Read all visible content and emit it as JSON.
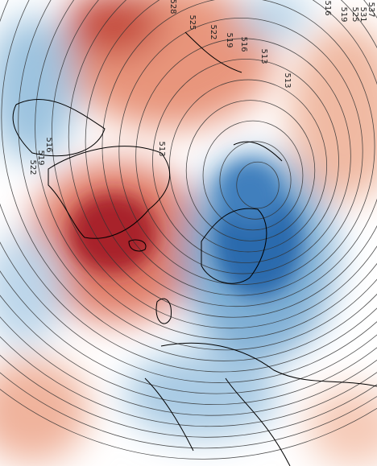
{
  "contour_labels": [
    "528",
    "525",
    "522",
    "519",
    "516",
    "513",
    "513",
    "537",
    "531",
    "525",
    "519",
    "516",
    "513",
    "516",
    "519",
    "522"
  ]
}
